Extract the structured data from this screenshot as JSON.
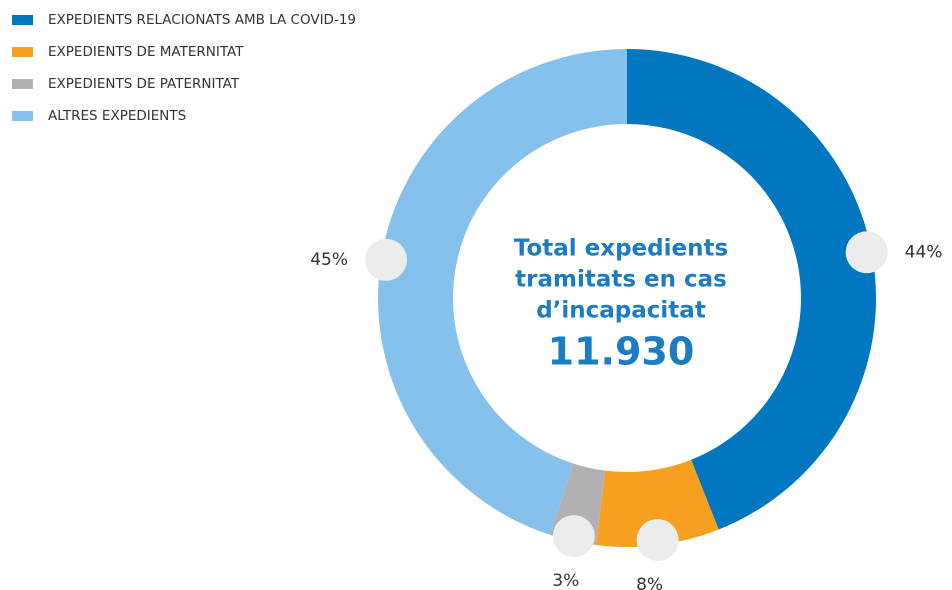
{
  "chart_data": {
    "type": "donut",
    "categories": [
      "EXPEDIENTS RELACIONATS AMB LA COVID-19",
      "EXPEDIENTS DE MATERNITAT",
      "EXPEDIENTS DE PATERNITAT",
      "ALTRES EXPEDIENTS"
    ],
    "values": [
      44,
      8,
      3,
      45
    ],
    "value_labels": [
      "44%",
      "8%",
      "3%",
      "45%"
    ],
    "colors": [
      "#0077c0",
      "#f7a01f",
      "#b1b1b1",
      "#85c1ea"
    ],
    "center_label": [
      "Total expedients",
      "tramitats en cas",
      "d’incapacitat"
    ],
    "center_value": {
      "value": 11930,
      "label": "11.930"
    },
    "legend": "top-left"
  }
}
